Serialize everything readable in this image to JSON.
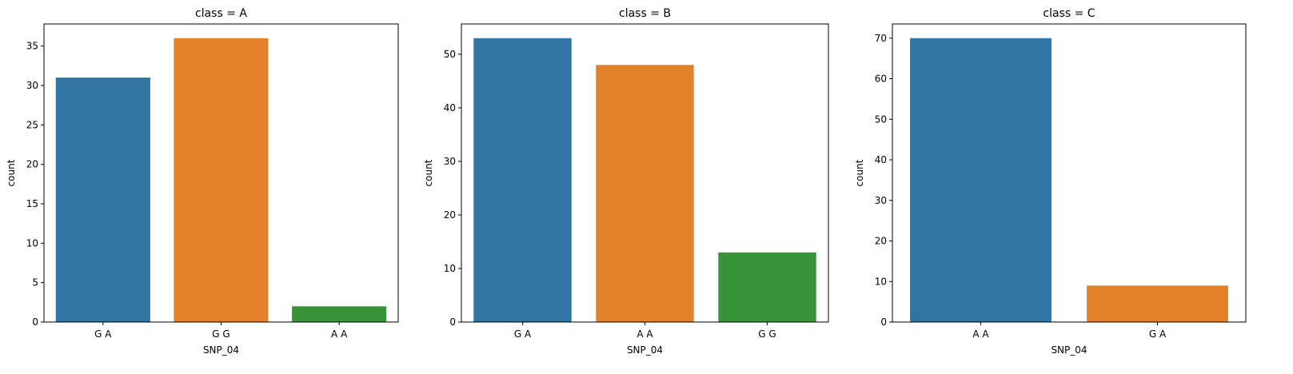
{
  "chart_data": [
    {
      "type": "bar",
      "title": "class = A",
      "xlabel": "SNP_04",
      "ylabel": "count",
      "categories": [
        "G A",
        "G G",
        "A A"
      ],
      "values": [
        31,
        36,
        2
      ],
      "colors": [
        "#3274a1",
        "#e1812c",
        "#3a923a"
      ],
      "ylim": [
        0,
        37.8
      ],
      "yticks": [
        0,
        5,
        10,
        15,
        20,
        25,
        30,
        35
      ],
      "grid": false
    },
    {
      "type": "bar",
      "title": "class = B",
      "xlabel": "SNP_04",
      "ylabel": "count",
      "categories": [
        "G A",
        "A A",
        "G G"
      ],
      "values": [
        53,
        48,
        13
      ],
      "colors": [
        "#3274a1",
        "#e1812c",
        "#3a923a"
      ],
      "ylim": [
        0,
        55.65
      ],
      "yticks": [
        0,
        10,
        20,
        30,
        40,
        50
      ],
      "grid": false
    },
    {
      "type": "bar",
      "title": "class = C",
      "xlabel": "SNP_04",
      "ylabel": "count",
      "categories": [
        "A A",
        "G A"
      ],
      "values": [
        70,
        9
      ],
      "colors": [
        "#3274a1",
        "#e1812c"
      ],
      "ylim": [
        0,
        73.5
      ],
      "yticks": [
        0,
        10,
        20,
        30,
        40,
        50,
        60,
        70
      ],
      "grid": false
    }
  ]
}
